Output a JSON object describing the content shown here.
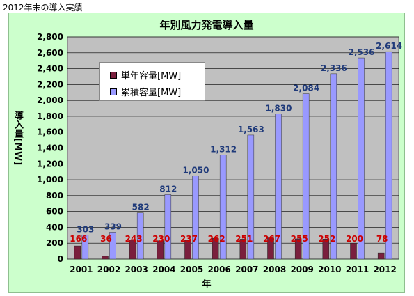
{
  "caption": "2012年末の導入実績",
  "colors": {
    "bg": "#ccffcc",
    "plot_bg": "#c0c0c0",
    "annual": "#7a1f3d",
    "cumulative": "#9999ff",
    "annual_label": "#cc0000",
    "cumulative_label": "#1f3a7a"
  },
  "chart_data": {
    "type": "bar",
    "title": "年別風力発電導入量",
    "xlabel": "年",
    "ylabel": "導入量[MW]",
    "ylim": [
      0,
      2800
    ],
    "yticks": [
      "0",
      "200",
      "400",
      "600",
      "800",
      "1,000",
      "1,200",
      "1,400",
      "1,600",
      "1,800",
      "2,000",
      "2,200",
      "2,400",
      "2,600",
      "2,800"
    ],
    "grid": true,
    "legend_position": "top-left",
    "categories": [
      "2001",
      "2002",
      "2003",
      "2004",
      "2005",
      "2006",
      "2007",
      "2008",
      "2009",
      "2010",
      "2011",
      "2012"
    ],
    "series": [
      {
        "name": "単年容量[MW]",
        "values": [
          166,
          36,
          243,
          230,
          237,
          262,
          251,
          267,
          255,
          252,
          200,
          78
        ],
        "labels": [
          "166",
          "36",
          "243",
          "230",
          "237",
          "262",
          "251",
          "267",
          "255",
          "252",
          "200",
          "78"
        ]
      },
      {
        "name": "累積容量[MW]",
        "values": [
          303,
          339,
          582,
          812,
          1050,
          1312,
          1563,
          1830,
          2084,
          2336,
          2536,
          2614
        ],
        "labels": [
          "303",
          "339",
          "582",
          "812",
          "1,050",
          "1,312",
          "1,563",
          "1,830",
          "2,084",
          "2,336",
          "2,536",
          "2,614"
        ]
      }
    ]
  }
}
